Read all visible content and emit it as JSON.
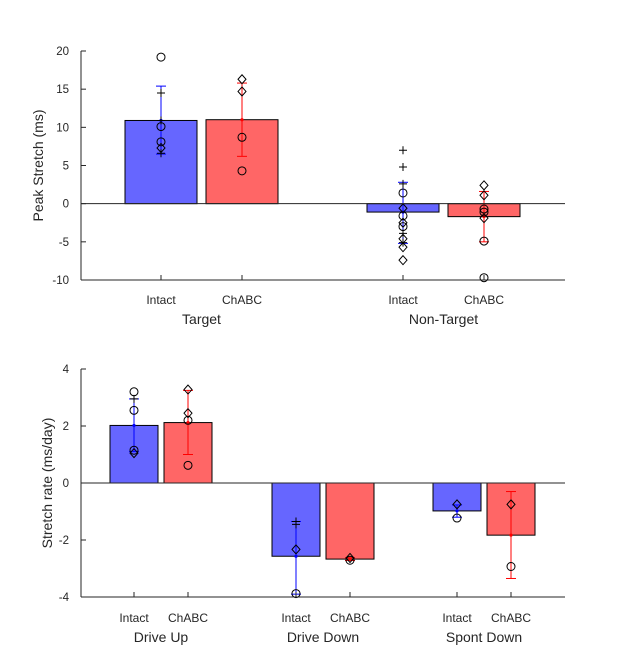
{
  "chart_data": [
    {
      "type": "bar",
      "ylabel": "Peak Stretch (ms)",
      "ylim": [
        -10,
        20
      ],
      "yticks": [
        -10,
        -5,
        0,
        5,
        10,
        15,
        20
      ],
      "grid": false,
      "groups": [
        {
          "name": "Target",
          "bars": [
            {
              "label": "Intact",
              "color": "#6666ff",
              "value": 10.9,
              "err_low": 6.5,
              "err_high": 15.4,
              "points": [
                {
                  "v": 19.2,
                  "m": "o"
                },
                {
                  "v": 14.5,
                  "m": "+"
                },
                {
                  "v": 10.9,
                  "m": "+"
                },
                {
                  "v": 10.1,
                  "m": "o"
                },
                {
                  "v": 8.1,
                  "m": "o"
                },
                {
                  "v": 7.3,
                  "m": "d"
                },
                {
                  "v": 6.6,
                  "m": "+"
                }
              ]
            },
            {
              "label": "ChABC",
              "color": "#ff6666",
              "value": 11.0,
              "err_low": 6.2,
              "err_high": 15.8,
              "points": [
                {
                  "v": 16.3,
                  "m": "d"
                },
                {
                  "v": 14.7,
                  "m": "d"
                },
                {
                  "v": 8.7,
                  "m": "o"
                },
                {
                  "v": 4.3,
                  "m": "o"
                }
              ]
            }
          ]
        },
        {
          "name": "Non-Target",
          "bars": [
            {
              "label": "Intact",
              "color": "#6666ff",
              "value": -1.1,
              "err_low": -5.2,
              "err_high": 2.8,
              "points": [
                {
                  "v": 7.0,
                  "m": "+"
                },
                {
                  "v": 4.8,
                  "m": "+"
                },
                {
                  "v": 2.6,
                  "m": "+"
                },
                {
                  "v": 1.4,
                  "m": "o"
                },
                {
                  "v": -0.6,
                  "m": "d"
                },
                {
                  "v": -1.6,
                  "m": "o"
                },
                {
                  "v": -2.5,
                  "m": "d"
                },
                {
                  "v": -3.0,
                  "m": "o"
                },
                {
                  "v": -3.9,
                  "m": "+"
                },
                {
                  "v": -4.6,
                  "m": "d"
                },
                {
                  "v": -5.1,
                  "m": "+"
                },
                {
                  "v": -5.7,
                  "m": "d"
                },
                {
                  "v": -7.4,
                  "m": "d"
                }
              ]
            },
            {
              "label": "ChABC",
              "color": "#ff6666",
              "value": -1.7,
              "err_low": -5.0,
              "err_high": 1.6,
              "points": [
                {
                  "v": 2.4,
                  "m": "d"
                },
                {
                  "v": 1.1,
                  "m": "d"
                },
                {
                  "v": -0.7,
                  "m": "o"
                },
                {
                  "v": -1.1,
                  "m": "o"
                },
                {
                  "v": -1.9,
                  "m": "d"
                },
                {
                  "v": -4.9,
                  "m": "o"
                },
                {
                  "v": -9.7,
                  "m": "o"
                }
              ]
            }
          ]
        }
      ]
    },
    {
      "type": "bar",
      "ylabel": "Stretch rate (ms/day)",
      "ylim": [
        -4,
        4
      ],
      "yticks": [
        -4,
        -2,
        0,
        2,
        4
      ],
      "grid": false,
      "groups": [
        {
          "name": "Drive Up",
          "bars": [
            {
              "label": "Intact",
              "color": "#6666ff",
              "value": 2.02,
              "err_low": 1.1,
              "err_high": 2.95,
              "points": [
                {
                  "v": 3.2,
                  "m": "o"
                },
                {
                  "v": 2.95,
                  "m": "+"
                },
                {
                  "v": 2.55,
                  "m": "o"
                },
                {
                  "v": 1.15,
                  "m": "o"
                },
                {
                  "v": 1.05,
                  "m": "d"
                }
              ]
            },
            {
              "label": "ChABC",
              "color": "#ff6666",
              "value": 2.12,
              "err_low": 1.0,
              "err_high": 3.25,
              "points": [
                {
                  "v": 3.28,
                  "m": "d"
                },
                {
                  "v": 2.45,
                  "m": "d"
                },
                {
                  "v": 2.2,
                  "m": "o"
                },
                {
                  "v": 0.62,
                  "m": "o"
                }
              ]
            }
          ]
        },
        {
          "name": "Drive Down",
          "bars": [
            {
              "label": "Intact",
              "color": "#6666ff",
              "value": -2.57,
              "err_low": -3.9,
              "err_high": -1.35,
              "points": [
                {
                  "v": -1.35,
                  "m": "+"
                },
                {
                  "v": -1.45,
                  "m": "+"
                },
                {
                  "v": -2.33,
                  "m": "d"
                },
                {
                  "v": -3.88,
                  "m": "o"
                }
              ]
            },
            {
              "label": "ChABC",
              "color": "#ff6666",
              "value": -2.67,
              "err_low": -2.72,
              "err_high": -2.62,
              "points": [
                {
                  "v": -2.63,
                  "m": "d"
                },
                {
                  "v": -2.71,
                  "m": "o"
                }
              ]
            }
          ]
        },
        {
          "name": "Spont Down",
          "bars": [
            {
              "label": "Intact",
              "color": "#6666ff",
              "value": -0.98,
              "err_low": -1.2,
              "err_high": -0.77,
              "points": [
                {
                  "v": -0.75,
                  "m": "d"
                },
                {
                  "v": -1.23,
                  "m": "o"
                }
              ]
            },
            {
              "label": "ChABC",
              "color": "#ff6666",
              "value": -1.83,
              "err_low": -3.35,
              "err_high": -0.3,
              "points": [
                {
                  "v": -0.75,
                  "m": "d"
                },
                {
                  "v": -2.93,
                  "m": "o"
                }
              ]
            }
          ]
        }
      ]
    }
  ]
}
